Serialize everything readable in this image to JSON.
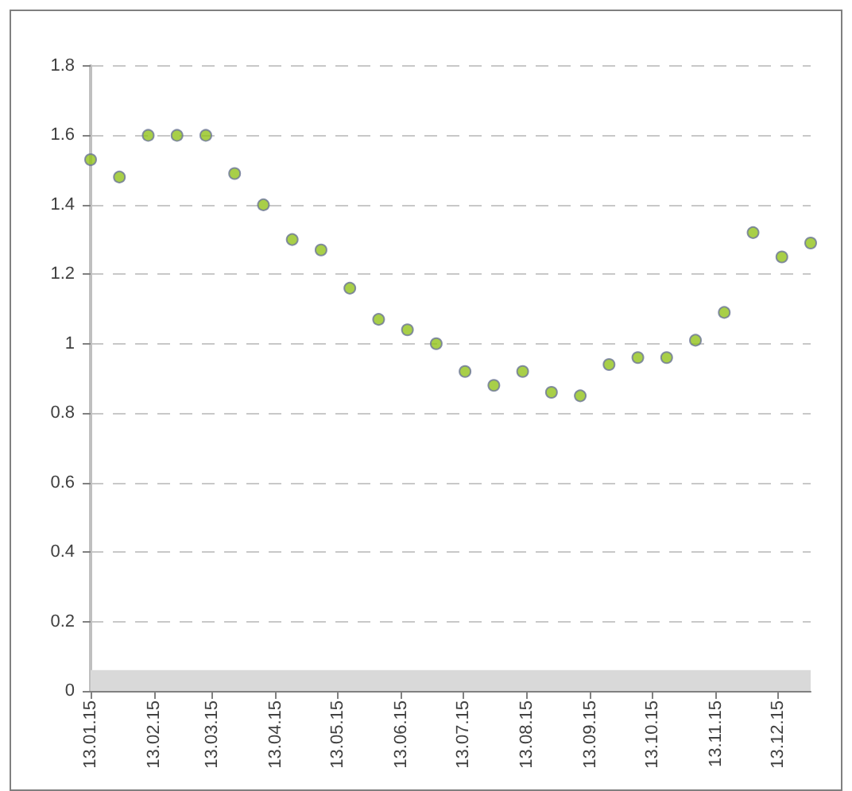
{
  "chart_data": {
    "type": "scatter",
    "x": [
      "2015-01-13",
      "2015-01-27",
      "2015-02-10",
      "2015-02-24",
      "2015-03-10",
      "2015-03-24",
      "2015-04-07",
      "2015-04-21",
      "2015-05-05",
      "2015-05-19",
      "2015-06-02",
      "2015-06-16",
      "2015-06-30",
      "2015-07-14",
      "2015-07-28",
      "2015-08-11",
      "2015-08-25",
      "2015-09-08",
      "2015-09-22",
      "2015-10-06",
      "2015-10-20",
      "2015-11-03",
      "2015-11-17",
      "2015-12-01",
      "2015-12-15",
      "2015-12-29"
    ],
    "values": [
      1.53,
      1.48,
      1.6,
      1.6,
      1.6,
      1.49,
      1.4,
      1.3,
      1.27,
      1.16,
      1.07,
      1.04,
      1.0,
      0.92,
      0.88,
      0.92,
      0.86,
      0.85,
      0.94,
      0.96,
      0.96,
      1.01,
      1.09,
      1.32,
      1.25,
      1.29
    ],
    "color": "#92c31a",
    "xlim": [
      "2015-01-13",
      "2015-12-29"
    ],
    "xticks": [
      {
        "value": "2015-01-13",
        "label": "13.01.15"
      },
      {
        "value": "2015-02-13",
        "label": "13.02.15"
      },
      {
        "value": "2015-03-13",
        "label": "13.03.15"
      },
      {
        "value": "2015-04-13",
        "label": "13.04.15"
      },
      {
        "value": "2015-05-13",
        "label": "13.05.15"
      },
      {
        "value": "2015-06-13",
        "label": "13.06.15"
      },
      {
        "value": "2015-07-13",
        "label": "13.07.15"
      },
      {
        "value": "2015-08-13",
        "label": "13.08.15"
      },
      {
        "value": "2015-09-13",
        "label": "13.09.15"
      },
      {
        "value": "2015-10-13",
        "label": "13.10.15"
      },
      {
        "value": "2015-11-13",
        "label": "13.11.15"
      },
      {
        "value": "2015-12-13",
        "label": "13.12.15"
      }
    ],
    "ylim": [
      0,
      1.8
    ],
    "yticks": [
      0,
      0.2,
      0.4,
      0.6,
      0.8,
      1,
      1.2,
      1.4,
      1.6,
      1.8
    ],
    "grid": "y",
    "marker": "circle",
    "bands": [
      {
        "axis": "y",
        "from": 0,
        "to": 0.06,
        "color": "#d9d9d9"
      }
    ]
  }
}
